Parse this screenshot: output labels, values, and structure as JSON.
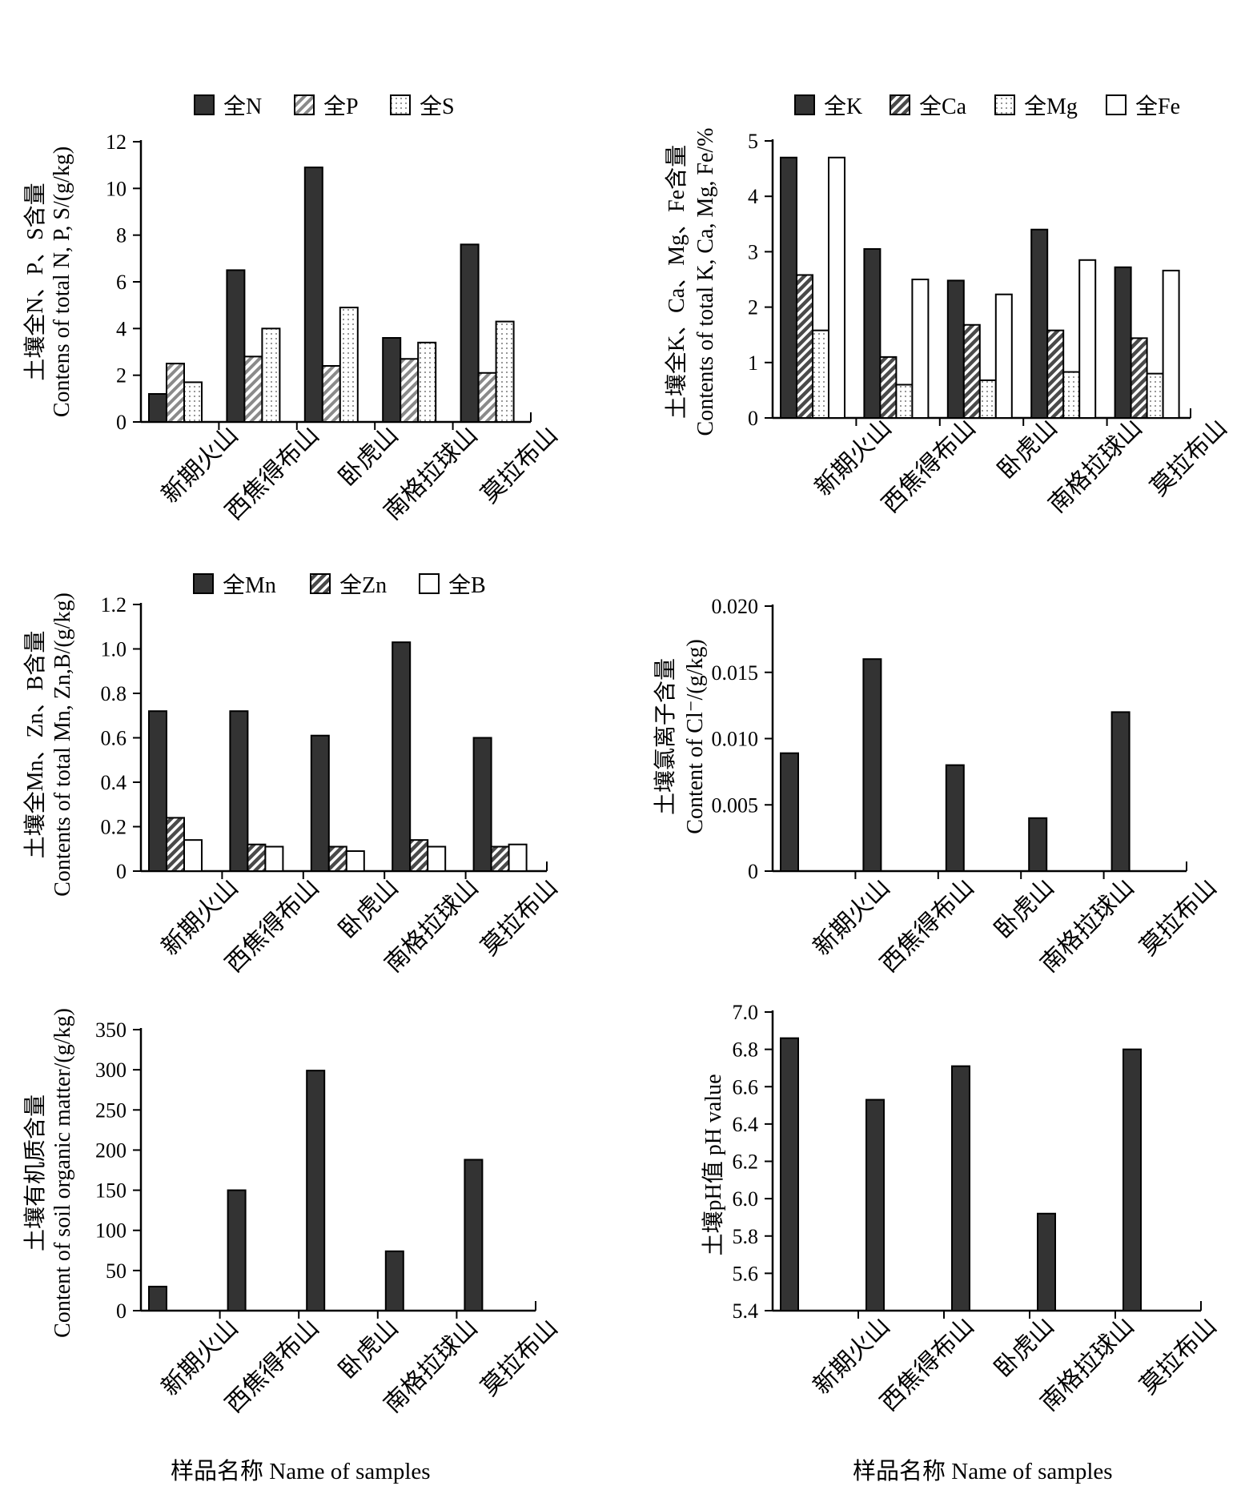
{
  "chart_data": [
    {
      "type": "bar",
      "categories": [
        "新期火山",
        "西焦得布山",
        "卧虎山",
        "南格拉球山",
        "莫拉布山"
      ],
      "series": [
        {
          "name": "全N",
          "values": [
            1.2,
            6.5,
            10.9,
            3.6,
            7.6
          ]
        },
        {
          "name": "全P",
          "values": [
            2.5,
            2.8,
            2.4,
            2.7,
            2.1
          ]
        },
        {
          "name": "全S",
          "values": [
            1.7,
            4.0,
            4.9,
            3.4,
            4.3
          ]
        }
      ],
      "ylabel": [
        "土壤全N、P、S含量",
        "Contens of total N, P, S/(g/kg)"
      ],
      "ylim": [
        0,
        12
      ],
      "yticks": [
        "0",
        "2",
        "4",
        "6",
        "8",
        "10",
        "12"
      ],
      "legend": "top"
    },
    {
      "type": "bar",
      "categories": [
        "新期火山",
        "西焦得布山",
        "卧虎山",
        "南格拉球山",
        "莫拉布山"
      ],
      "series": [
        {
          "name": "全K",
          "values": [
            4.7,
            3.05,
            2.48,
            3.4,
            2.72
          ]
        },
        {
          "name": "全Ca",
          "values": [
            2.58,
            1.1,
            1.68,
            1.58,
            1.44
          ]
        },
        {
          "name": "全Mg",
          "values": [
            1.58,
            0.6,
            0.68,
            0.83,
            0.8
          ]
        },
        {
          "name": "全Fe",
          "values": [
            4.7,
            2.5,
            2.23,
            2.85,
            2.66
          ]
        }
      ],
      "ylabel": [
        "土壤全K、Ca、Mg、Fe含量",
        "Contents of total K, Ca, Mg, Fe/%"
      ],
      "ylim": [
        0,
        5
      ],
      "yticks": [
        "0",
        "1",
        "2",
        "3",
        "4",
        "5"
      ],
      "legend": "top"
    },
    {
      "type": "bar",
      "categories": [
        "新期火山",
        "西焦得布山",
        "卧虎山",
        "南格拉球山",
        "莫拉布山"
      ],
      "series": [
        {
          "name": "全Mn",
          "values": [
            0.72,
            0.72,
            0.61,
            1.03,
            0.6
          ]
        },
        {
          "name": "全Zn",
          "values": [
            0.24,
            0.12,
            0.11,
            0.14,
            0.11
          ]
        },
        {
          "name": "全B",
          "values": [
            0.14,
            0.11,
            0.09,
            0.11,
            0.12
          ]
        }
      ],
      "ylabel": [
        "土壤全Mn、Zn、B含量",
        "Contents of total Mn, Zn,B/(g/kg)"
      ],
      "ylim": [
        0,
        1.2
      ],
      "yticks": [
        "0",
        "0.2",
        "0.4",
        "0.6",
        "0.8",
        "1.0",
        "1.2"
      ],
      "legend": "top"
    },
    {
      "type": "bar",
      "categories": [
        "新期火山",
        "西焦得布山",
        "卧虎山",
        "南格拉球山",
        "莫拉布山"
      ],
      "series": [
        {
          "values": [
            0.0089,
            0.016,
            0.008,
            0.004,
            0.012
          ]
        }
      ],
      "ylabel": [
        "土壤氯离子含量",
        "Content of Cl⁻/(g/kg)"
      ],
      "ylim": [
        0,
        0.02
      ],
      "yticks": [
        "0",
        "0.005",
        "0.010",
        "0.015",
        "0.020"
      ]
    },
    {
      "type": "bar",
      "categories": [
        "新期火山",
        "西焦得布山",
        "卧虎山",
        "南格拉球山",
        "莫拉布山"
      ],
      "series": [
        {
          "values": [
            30,
            150,
            299,
            74,
            188
          ]
        }
      ],
      "ylabel": [
        "土壤有机质含量",
        "Content of soil organic matter/(g/kg)"
      ],
      "ylim": [
        0,
        350
      ],
      "yticks": [
        "0",
        "50",
        "100",
        "150",
        "200",
        "250",
        "300",
        "350"
      ]
    },
    {
      "type": "bar",
      "categories": [
        "新期火山",
        "西焦得布山",
        "卧虎山",
        "南格拉球山",
        "莫拉布山"
      ],
      "series": [
        {
          "values": [
            6.86,
            6.53,
            6.71,
            5.92,
            6.8
          ]
        }
      ],
      "ylabel": [
        "土壤pH值 pH value"
      ],
      "ylim": [
        5.4,
        7.0
      ],
      "yticks": [
        "5.4",
        "5.6",
        "5.8",
        "6.0",
        "6.2",
        "6.4",
        "6.6",
        "6.8",
        "7.0"
      ]
    }
  ],
  "xlabel": "样品名称 Name of samples",
  "styles": {
    "solid": "#333333",
    "hatch_dark": "#555555",
    "dots": "#777777",
    "outline": "#000000",
    "white": "#ffffff"
  }
}
